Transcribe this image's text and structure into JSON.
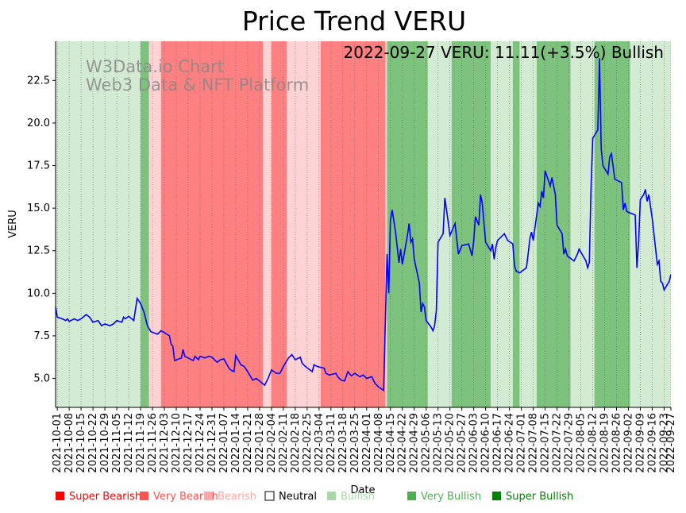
{
  "chart_data": {
    "type": "line",
    "title": "Price Trend VERU",
    "annotation": "2022-09-27 VERU: 11.11(+3.5%) Bullish",
    "watermark": [
      "W3Data.io Chart",
      "Web3 Data & NFT Platform"
    ],
    "xlabel": "Date",
    "ylabel": "VERU",
    "ylim": [
      3.3,
      24.8
    ],
    "yticks": [
      5.0,
      7.5,
      10.0,
      12.5,
      15.0,
      17.5,
      20.0,
      22.5
    ],
    "ytick_labels": [
      "5.0",
      "7.5",
      "10.0",
      "12.5",
      "15.0",
      "17.5",
      "20.0",
      "22.5"
    ],
    "xlim": [
      "2021-09-30",
      "2022-09-27"
    ],
    "xtick_labels": [
      "2021-10-01",
      "2021-10-08",
      "2021-10-15",
      "2021-10-22",
      "2021-10-29",
      "2021-11-05",
      "2021-11-12",
      "2021-11-19",
      "2021-11-26",
      "2021-12-03",
      "2021-12-10",
      "2021-12-17",
      "2021-12-24",
      "2021-12-31",
      "2022-01-07",
      "2022-01-14",
      "2022-01-21",
      "2022-01-28",
      "2022-02-04",
      "2022-02-11",
      "2022-02-18",
      "2022-02-25",
      "2022-03-04",
      "2022-03-11",
      "2022-03-18",
      "2022-03-25",
      "2022-04-01",
      "2022-04-08",
      "2022-04-15",
      "2022-04-22",
      "2022-04-29",
      "2022-05-06",
      "2022-05-13",
      "2022-05-20",
      "2022-05-27",
      "2022-06-03",
      "2022-06-10",
      "2022-06-17",
      "2022-06-24",
      "2022-07-01",
      "2022-07-08",
      "2022-07-15",
      "2022-07-22",
      "2022-07-29",
      "2022-08-05",
      "2022-08-12",
      "2022-08-19",
      "2022-08-26",
      "2022-09-02",
      "2022-09-09",
      "2022-09-16",
      "2022-09-23",
      "2022-09-27"
    ],
    "series": [
      {
        "name": "VERU",
        "color": "#0000ff",
        "points": [
          [
            "2021-09-30",
            9.2
          ],
          [
            "2021-10-01",
            8.6
          ],
          [
            "2021-10-04",
            8.5
          ],
          [
            "2021-10-06",
            8.4
          ],
          [
            "2021-10-07",
            8.5
          ],
          [
            "2021-10-08",
            8.35
          ],
          [
            "2021-10-11",
            8.5
          ],
          [
            "2021-10-13",
            8.4
          ],
          [
            "2021-10-15",
            8.5
          ],
          [
            "2021-10-18",
            8.75
          ],
          [
            "2021-10-20",
            8.6
          ],
          [
            "2021-10-22",
            8.3
          ],
          [
            "2021-10-25",
            8.4
          ],
          [
            "2021-10-27",
            8.1
          ],
          [
            "2021-10-29",
            8.2
          ],
          [
            "2021-11-01",
            8.1
          ],
          [
            "2021-11-03",
            8.2
          ],
          [
            "2021-11-05",
            8.4
          ],
          [
            "2021-11-08",
            8.3
          ],
          [
            "2021-11-09",
            8.6
          ],
          [
            "2021-11-10",
            8.5
          ],
          [
            "2021-11-12",
            8.65
          ],
          [
            "2021-11-15",
            8.4
          ],
          [
            "2021-11-17",
            9.7
          ],
          [
            "2021-11-19",
            9.4
          ],
          [
            "2021-11-21",
            8.9
          ],
          [
            "2021-11-23",
            8.1
          ],
          [
            "2021-11-25",
            7.75
          ],
          [
            "2021-11-29",
            7.6
          ],
          [
            "2021-12-01",
            7.8
          ],
          [
            "2021-12-03",
            7.7
          ],
          [
            "2021-12-06",
            7.5
          ],
          [
            "2021-12-07",
            7.0
          ],
          [
            "2021-12-08",
            6.9
          ],
          [
            "2021-12-09",
            6.05
          ],
          [
            "2021-12-13",
            6.2
          ],
          [
            "2021-12-14",
            6.7
          ],
          [
            "2021-12-15",
            6.3
          ],
          [
            "2021-12-17",
            6.2
          ],
          [
            "2021-12-20",
            6.05
          ],
          [
            "2021-12-21",
            6.3
          ],
          [
            "2021-12-23",
            6.1
          ],
          [
            "2021-12-24",
            6.3
          ],
          [
            "2021-12-27",
            6.2
          ],
          [
            "2021-12-29",
            6.3
          ],
          [
            "2021-12-31",
            6.25
          ],
          [
            "2022-01-03",
            5.95
          ],
          [
            "2022-01-05",
            6.1
          ],
          [
            "2022-01-07",
            6.15
          ],
          [
            "2022-01-10",
            5.6
          ],
          [
            "2022-01-11",
            5.5
          ],
          [
            "2022-01-13",
            5.4
          ],
          [
            "2022-01-14",
            6.35
          ],
          [
            "2022-01-17",
            5.8
          ],
          [
            "2022-01-19",
            5.7
          ],
          [
            "2022-01-21",
            5.4
          ],
          [
            "2022-01-24",
            4.9
          ],
          [
            "2022-01-26",
            5.0
          ],
          [
            "2022-01-28",
            4.85
          ],
          [
            "2022-01-31",
            4.6
          ],
          [
            "2022-02-02",
            5.0
          ],
          [
            "2022-02-04",
            5.5
          ],
          [
            "2022-02-07",
            5.3
          ],
          [
            "2022-02-09",
            5.3
          ],
          [
            "2022-02-11",
            5.7
          ],
          [
            "2022-02-14",
            6.2
          ],
          [
            "2022-02-16",
            6.4
          ],
          [
            "2022-02-18",
            6.1
          ],
          [
            "2022-02-21",
            6.25
          ],
          [
            "2022-02-22",
            5.9
          ],
          [
            "2022-02-24",
            5.7
          ],
          [
            "2022-02-28",
            5.4
          ],
          [
            "2022-03-01",
            5.8
          ],
          [
            "2022-03-03",
            5.7
          ],
          [
            "2022-03-07",
            5.6
          ],
          [
            "2022-03-08",
            5.3
          ],
          [
            "2022-03-10",
            5.2
          ],
          [
            "2022-03-14",
            5.3
          ],
          [
            "2022-03-15",
            5.1
          ],
          [
            "2022-03-17",
            4.9
          ],
          [
            "2022-03-19",
            4.85
          ],
          [
            "2022-03-21",
            5.4
          ],
          [
            "2022-03-23",
            5.15
          ],
          [
            "2022-03-25",
            5.3
          ],
          [
            "2022-03-28",
            5.1
          ],
          [
            "2022-03-30",
            5.2
          ],
          [
            "2022-04-01",
            5.0
          ],
          [
            "2022-04-04",
            5.1
          ],
          [
            "2022-04-06",
            4.7
          ],
          [
            "2022-04-08",
            4.5
          ],
          [
            "2022-04-11",
            4.3
          ],
          [
            "2022-04-13",
            12.3
          ],
          [
            "2022-04-14",
            10.0
          ],
          [
            "2022-04-15",
            14.3
          ],
          [
            "2022-04-16",
            14.9
          ],
          [
            "2022-04-18",
            13.6
          ],
          [
            "2022-04-20",
            11.8
          ],
          [
            "2022-04-21",
            12.6
          ],
          [
            "2022-04-22",
            11.7
          ],
          [
            "2022-04-25",
            13.4
          ],
          [
            "2022-04-26",
            14.1
          ],
          [
            "2022-04-27",
            13.0
          ],
          [
            "2022-04-28",
            13.2
          ],
          [
            "2022-04-29",
            12.0
          ],
          [
            "2022-05-02",
            10.6
          ],
          [
            "2022-05-03",
            8.9
          ],
          [
            "2022-05-04",
            9.4
          ],
          [
            "2022-05-05",
            9.2
          ],
          [
            "2022-05-06",
            8.4
          ],
          [
            "2022-05-09",
            8.0
          ],
          [
            "2022-05-10",
            7.8
          ],
          [
            "2022-05-11",
            8.1
          ],
          [
            "2022-05-12",
            9.0
          ],
          [
            "2022-05-13",
            13.0
          ],
          [
            "2022-05-16",
            13.5
          ],
          [
            "2022-05-17",
            15.6
          ],
          [
            "2022-05-18",
            14.9
          ],
          [
            "2022-05-20",
            13.4
          ],
          [
            "2022-05-23",
            14.1
          ],
          [
            "2022-05-25",
            12.3
          ],
          [
            "2022-05-27",
            12.8
          ],
          [
            "2022-05-31",
            12.9
          ],
          [
            "2022-06-02",
            12.2
          ],
          [
            "2022-06-03",
            13.1
          ],
          [
            "2022-06-04",
            14.5
          ],
          [
            "2022-06-06",
            14.0
          ],
          [
            "2022-06-07",
            15.8
          ],
          [
            "2022-06-08",
            15.3
          ],
          [
            "2022-06-10",
            13.0
          ],
          [
            "2022-06-13",
            12.5
          ],
          [
            "2022-06-14",
            12.9
          ],
          [
            "2022-06-15",
            12.0
          ],
          [
            "2022-06-16",
            12.7
          ],
          [
            "2022-06-17",
            13.1
          ],
          [
            "2022-06-21",
            13.5
          ],
          [
            "2022-06-23",
            13.1
          ],
          [
            "2022-06-26",
            12.9
          ],
          [
            "2022-06-27",
            11.6
          ],
          [
            "2022-06-28",
            11.3
          ],
          [
            "2022-06-30",
            11.2
          ],
          [
            "2022-07-04",
            11.5
          ],
          [
            "2022-07-05",
            12.3
          ],
          [
            "2022-07-06",
            13.2
          ],
          [
            "2022-07-07",
            13.6
          ],
          [
            "2022-07-08",
            13.1
          ],
          [
            "2022-07-11",
            15.3
          ],
          [
            "2022-07-12",
            15.1
          ],
          [
            "2022-07-13",
            16.0
          ],
          [
            "2022-07-14",
            15.6
          ],
          [
            "2022-07-15",
            17.2
          ],
          [
            "2022-07-18",
            16.3
          ],
          [
            "2022-07-19",
            16.8
          ],
          [
            "2022-07-21",
            15.8
          ],
          [
            "2022-07-22",
            14.0
          ],
          [
            "2022-07-25",
            13.5
          ],
          [
            "2022-07-26",
            12.3
          ],
          [
            "2022-07-27",
            12.6
          ],
          [
            "2022-07-28",
            12.2
          ],
          [
            "2022-08-01",
            11.9
          ],
          [
            "2022-08-03",
            12.3
          ],
          [
            "2022-08-04",
            12.6
          ],
          [
            "2022-08-08",
            11.9
          ],
          [
            "2022-08-09",
            11.5
          ],
          [
            "2022-08-10",
            11.8
          ],
          [
            "2022-08-11",
            16.2
          ],
          [
            "2022-08-12",
            19.1
          ],
          [
            "2022-08-15",
            19.6
          ],
          [
            "2022-08-16",
            23.8
          ],
          [
            "2022-08-17",
            18.5
          ],
          [
            "2022-08-18",
            17.5
          ],
          [
            "2022-08-21",
            17.0
          ],
          [
            "2022-08-22",
            18.0
          ],
          [
            "2022-08-23",
            18.2
          ],
          [
            "2022-08-25",
            16.7
          ],
          [
            "2022-08-29",
            16.5
          ],
          [
            "2022-08-30",
            14.9
          ],
          [
            "2022-08-31",
            15.3
          ],
          [
            "2022-09-01",
            14.8
          ],
          [
            "2022-09-06",
            14.6
          ],
          [
            "2022-09-07",
            11.5
          ],
          [
            "2022-09-08",
            13.0
          ],
          [
            "2022-09-09",
            15.5
          ],
          [
            "2022-09-11",
            15.8
          ],
          [
            "2022-09-12",
            16.1
          ],
          [
            "2022-09-13",
            15.4
          ],
          [
            "2022-09-14",
            15.8
          ],
          [
            "2022-09-15",
            15.1
          ],
          [
            "2022-09-16",
            14.4
          ],
          [
            "2022-09-19",
            11.7
          ],
          [
            "2022-09-20",
            11.9
          ],
          [
            "2022-09-21",
            10.7
          ],
          [
            "2022-09-22",
            10.6
          ],
          [
            "2022-09-23",
            10.2
          ],
          [
            "2022-09-26",
            10.7
          ],
          [
            "2022-09-27",
            11.11
          ]
        ]
      }
    ],
    "sentiment_bands": [
      {
        "start": "2021-09-30",
        "end": "2021-11-19",
        "level": "Bullish"
      },
      {
        "start": "2021-11-19",
        "end": "2021-11-24",
        "level": "Very Bullish"
      },
      {
        "start": "2021-11-24",
        "end": "2021-12-01",
        "level": "Bearish"
      },
      {
        "start": "2021-12-01",
        "end": "2022-01-30",
        "level": "Very Bearish"
      },
      {
        "start": "2022-01-30",
        "end": "2022-02-04",
        "level": "Bearish"
      },
      {
        "start": "2022-02-04",
        "end": "2022-02-13",
        "level": "Very Bearish"
      },
      {
        "start": "2022-02-13",
        "end": "2022-03-05",
        "level": "Bearish"
      },
      {
        "start": "2022-03-05",
        "end": "2022-04-12",
        "level": "Very Bearish"
      },
      {
        "start": "2022-04-12",
        "end": "2022-04-13",
        "level": "Bearish"
      },
      {
        "start": "2022-04-13",
        "end": "2022-05-07",
        "level": "Very Bullish"
      },
      {
        "start": "2022-05-07",
        "end": "2022-05-21",
        "level": "Bullish"
      },
      {
        "start": "2022-05-21",
        "end": "2022-06-13",
        "level": "Very Bullish"
      },
      {
        "start": "2022-06-13",
        "end": "2022-06-26",
        "level": "Bullish"
      },
      {
        "start": "2022-06-26",
        "end": "2022-06-30",
        "level": "Very Bullish"
      },
      {
        "start": "2022-06-30",
        "end": "2022-07-10",
        "level": "Bullish"
      },
      {
        "start": "2022-07-10",
        "end": "2022-07-30",
        "level": "Very Bullish"
      },
      {
        "start": "2022-07-30",
        "end": "2022-08-13",
        "level": "Bullish"
      },
      {
        "start": "2022-08-13",
        "end": "2022-09-03",
        "level": "Very Bullish"
      },
      {
        "start": "2022-09-03",
        "end": "2022-09-27",
        "level": "Bullish"
      }
    ],
    "legend": [
      {
        "label": "Super Bearish",
        "color": "#ff0000"
      },
      {
        "label": "Very Bearish",
        "color": "#ff5252"
      },
      {
        "label": "Bearish",
        "color": "#ffa7a7"
      },
      {
        "label": "Neutral",
        "color": "#000000"
      },
      {
        "label": "Bullish",
        "color": "#a8d8a8"
      },
      {
        "label": "Very Bullish",
        "color": "#4caf50"
      },
      {
        "label": "Super Bullish",
        "color": "#008000"
      }
    ],
    "level_colors": {
      "Super Bearish": "#ff5050",
      "Very Bearish": "#ff8080",
      "Bearish": "#ffd3d3",
      "Neutral": "#ffffff",
      "Bullish": "#d3ebd3",
      "Very Bullish": "#7dc27d",
      "Super Bullish": "#4caf50"
    }
  }
}
